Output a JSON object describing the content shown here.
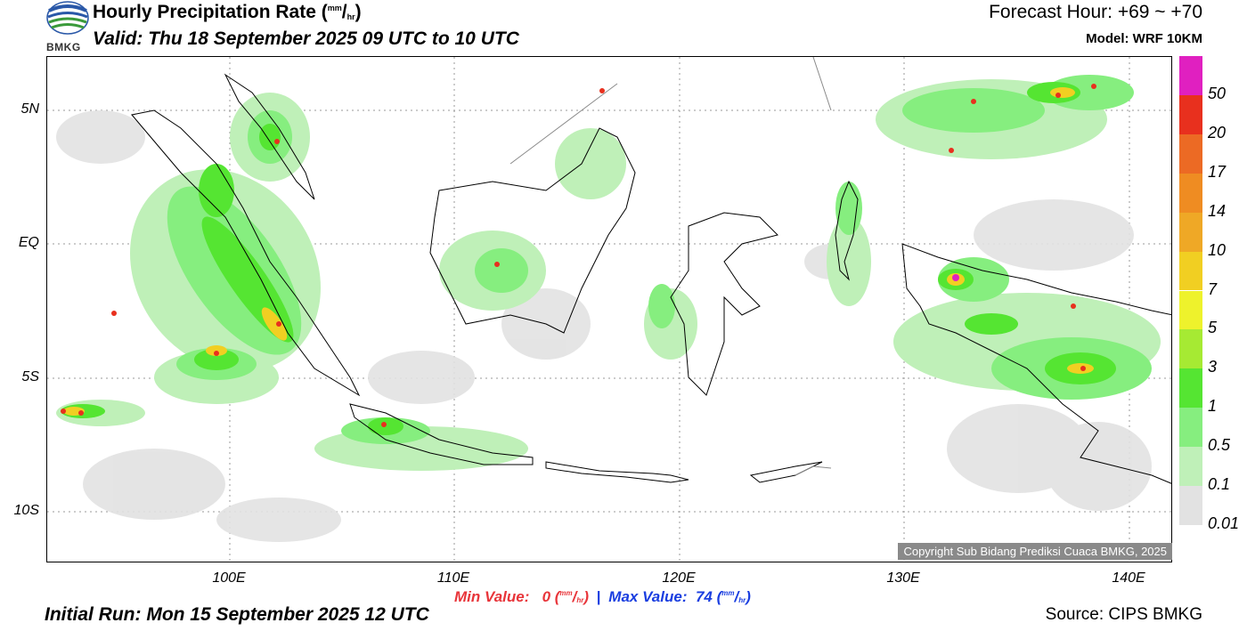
{
  "header": {
    "title_main": "Hourly Precipitation Rate (",
    "title_unit_num": "mm",
    "title_unit_slash": "/",
    "title_unit_den": "hr",
    "title_close": ")",
    "valid": "Valid: Thu 18 September 2025 09 UTC to 10 UTC",
    "forecast_hour": "Forecast Hour: +69 ~ +70",
    "model": "Model: WRF 10KM",
    "logo_text": "BMKG"
  },
  "map": {
    "lat_labels": [
      "5N",
      "EQ",
      "5S",
      "10S"
    ],
    "lon_labels": [
      "100E",
      "110E",
      "120E",
      "130E",
      "140E"
    ],
    "copyright": "Copyright Sub Bidang Prediksi Cuaca BMKG, 2025"
  },
  "footer": {
    "min_label": "Min Value:",
    "min_value": "0",
    "max_label": "Max Value:",
    "max_value": "74",
    "unit_num": "mm",
    "unit_den": "hr",
    "separator": "|",
    "initial_run": "Initial Run: Mon 15 September 2025 12 UTC",
    "source": "Source: CIPS BMKG"
  },
  "colorbar": {
    "labels": [
      "50",
      "20",
      "17",
      "14",
      "10",
      "7",
      "5",
      "3",
      "1",
      "0.5",
      "0.1",
      "0.01"
    ],
    "colors": [
      "#e020c0",
      "#e8301e",
      "#ec6a24",
      "#ef8c22",
      "#efa826",
      "#f1cf22",
      "#eef22c",
      "#a6ea33",
      "#55e532",
      "#86ee7f",
      "#bff0b8",
      "#e2e2e2"
    ]
  }
}
